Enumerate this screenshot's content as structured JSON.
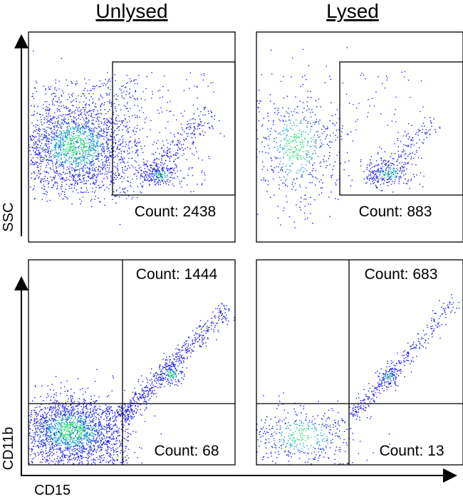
{
  "columns": [
    "Unlysed",
    "Lysed"
  ],
  "axes": {
    "top_y": "SSC",
    "bottom_y": "CD11b",
    "bottom_x": "CD15"
  },
  "panels": [
    {
      "gate_labels": [
        "Count: 2438"
      ]
    },
    {
      "gate_labels": [
        "Count: 883"
      ]
    },
    {
      "gate_labels": [
        "Count: 1444",
        "Count: 68"
      ]
    },
    {
      "gate_labels": [
        "Count: 683",
        "Count: 13"
      ]
    }
  ]
}
